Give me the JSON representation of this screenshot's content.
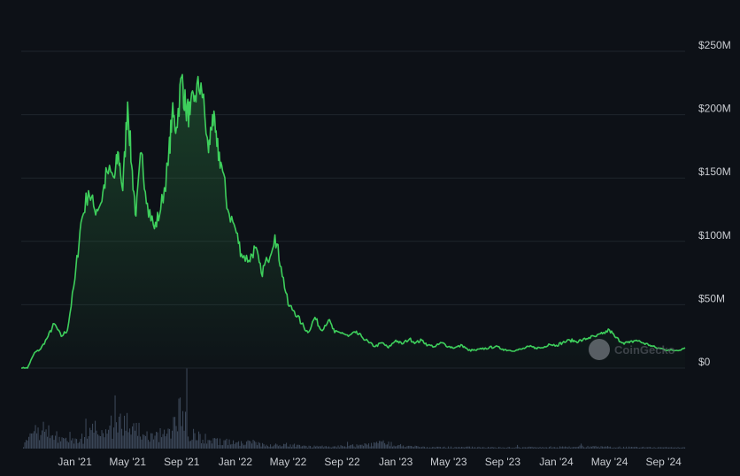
{
  "chart_data": {
    "type": "area",
    "y_tick_labels": [
      "$250M",
      "$200M",
      "$150M",
      "$100M",
      "$50M",
      "$0"
    ],
    "y_ticks": [
      250,
      200,
      150,
      100,
      50,
      0
    ],
    "ylim": [
      0,
      250
    ],
    "x_tick_labels": [
      "Jan '21",
      "May '21",
      "Sep '21",
      "Jan '22",
      "May '22",
      "Sep '22",
      "Jan '23",
      "May '23",
      "Sep '23",
      "Jan '24",
      "May '24",
      "Sep '24"
    ],
    "x_ticks": [
      "2021-01-01",
      "2021-05-01",
      "2021-09-01",
      "2022-01-01",
      "2022-05-01",
      "2022-09-01",
      "2023-01-01",
      "2023-05-01",
      "2023-09-01",
      "2024-01-01",
      "2024-05-01",
      "2024-09-01"
    ],
    "xlim": [
      "2020-09-01",
      "2024-10-20"
    ],
    "grid": true,
    "series": [
      {
        "values_unit": "USD millions",
        "color": "#3ecf5c",
        "x": [
          "2020-09-01",
          "2020-09-15",
          "2020-10-01",
          "2020-10-15",
          "2020-11-01",
          "2020-11-15",
          "2020-12-01",
          "2020-12-15",
          "2021-01-01",
          "2021-01-15",
          "2021-02-01",
          "2021-02-15",
          "2021-03-01",
          "2021-03-15",
          "2021-04-01",
          "2021-04-10",
          "2021-04-20",
          "2021-05-01",
          "2021-05-10",
          "2021-05-20",
          "2021-06-01",
          "2021-06-15",
          "2021-07-01",
          "2021-07-15",
          "2021-08-01",
          "2021-08-10",
          "2021-08-20",
          "2021-09-01",
          "2021-09-10",
          "2021-09-20",
          "2021-10-01",
          "2021-10-15",
          "2021-11-01",
          "2021-11-10",
          "2021-11-20",
          "2021-12-01",
          "2021-12-15",
          "2022-01-01",
          "2022-01-15",
          "2022-02-01",
          "2022-02-15",
          "2022-03-01",
          "2022-03-15",
          "2022-04-01",
          "2022-04-15",
          "2022-05-01",
          "2022-05-15",
          "2022-06-01",
          "2022-06-15",
          "2022-07-01",
          "2022-07-15",
          "2022-08-01",
          "2022-08-15",
          "2022-09-01",
          "2022-09-15",
          "2022-10-01",
          "2022-10-15",
          "2022-11-01",
          "2022-11-15",
          "2022-12-01",
          "2022-12-15",
          "2023-01-01",
          "2023-01-15",
          "2023-02-01",
          "2023-02-15",
          "2023-03-01",
          "2023-03-15",
          "2023-04-01",
          "2023-04-15",
          "2023-05-01",
          "2023-05-15",
          "2023-06-01",
          "2023-06-15",
          "2023-07-01",
          "2023-07-15",
          "2023-08-01",
          "2023-08-15",
          "2023-09-01",
          "2023-09-15",
          "2023-10-01",
          "2023-10-15",
          "2023-11-01",
          "2023-11-15",
          "2023-12-01",
          "2023-12-15",
          "2024-01-01",
          "2024-01-15",
          "2024-02-01",
          "2024-02-15",
          "2024-03-01",
          "2024-03-15",
          "2024-04-01",
          "2024-04-15",
          "2024-05-01",
          "2024-05-15",
          "2024-06-01",
          "2024-06-15",
          "2024-07-01",
          "2024-07-15",
          "2024-08-01",
          "2024-08-15",
          "2024-09-01",
          "2024-09-15",
          "2024-10-01",
          "2024-10-20"
        ],
        "values": [
          0,
          0,
          12,
          15,
          25,
          35,
          25,
          30,
          70,
          115,
          140,
          125,
          130,
          155,
          150,
          170,
          140,
          210,
          160,
          120,
          170,
          130,
          110,
          125,
          160,
          200,
          190,
          230,
          205,
          200,
          215,
          225,
          170,
          200,
          175,
          160,
          125,
          110,
          90,
          85,
          95,
          75,
          85,
          105,
          80,
          50,
          45,
          35,
          28,
          40,
          30,
          38,
          28,
          28,
          25,
          28,
          25,
          20,
          17,
          20,
          16,
          22,
          19,
          23,
          20,
          22,
          18,
          17,
          20,
          17,
          16,
          18,
          14,
          14,
          15,
          16,
          17,
          15,
          14,
          14,
          15,
          17,
          16,
          16,
          19,
          18,
          20,
          22,
          21,
          22,
          24,
          25,
          27,
          30,
          24,
          20,
          20,
          22,
          20,
          18,
          16,
          15,
          14,
          14,
          16
        ]
      }
    ],
    "volume": {
      "x": [
        "2020-09-01",
        "2020-10-15",
        "2020-12-01",
        "2021-01-01",
        "2021-02-01",
        "2021-03-01",
        "2021-04-01",
        "2021-05-01",
        "2021-06-01",
        "2021-07-01",
        "2021-08-01",
        "2021-09-01",
        "2021-09-15",
        "2021-10-01",
        "2021-11-01",
        "2021-12-01",
        "2022-01-01",
        "2022-02-01",
        "2022-03-01",
        "2022-04-01",
        "2022-05-01",
        "2022-06-01",
        "2022-08-01",
        "2022-10-01",
        "2022-12-01",
        "2023-03-01",
        "2023-06-01",
        "2023-09-01",
        "2023-12-01",
        "2024-03-01",
        "2024-06-01",
        "2024-09-01"
      ],
      "values": [
        2,
        30,
        12,
        10,
        18,
        35,
        30,
        45,
        20,
        15,
        25,
        60,
        25,
        18,
        12,
        10,
        8,
        9,
        6,
        5,
        6,
        3,
        3,
        4,
        8,
        2,
        2,
        1.5,
        2,
        3,
        2,
        1.5
      ]
    }
  },
  "watermark": {
    "text": "CoinGecko"
  }
}
